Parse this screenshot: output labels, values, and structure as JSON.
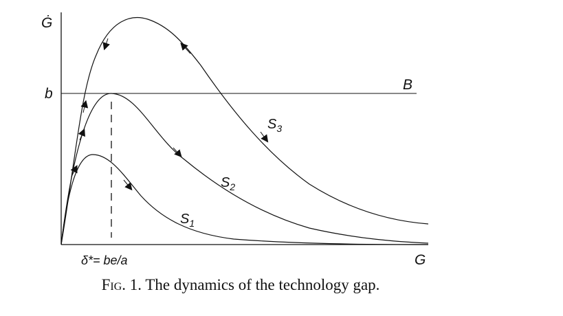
{
  "axes": {
    "y_label": "Ġ",
    "x_label": "G"
  },
  "line_B": {
    "y_label": "b",
    "label": "B"
  },
  "curves": [
    {
      "label": "S",
      "subscript": "1"
    },
    {
      "label": "S",
      "subscript": "2"
    },
    {
      "label": "S",
      "subscript": "3"
    }
  ],
  "delta_label": "δ*= be/a",
  "caption": {
    "prefix": "Fig.",
    "text": "1. The dynamics of the technology gap."
  }
}
